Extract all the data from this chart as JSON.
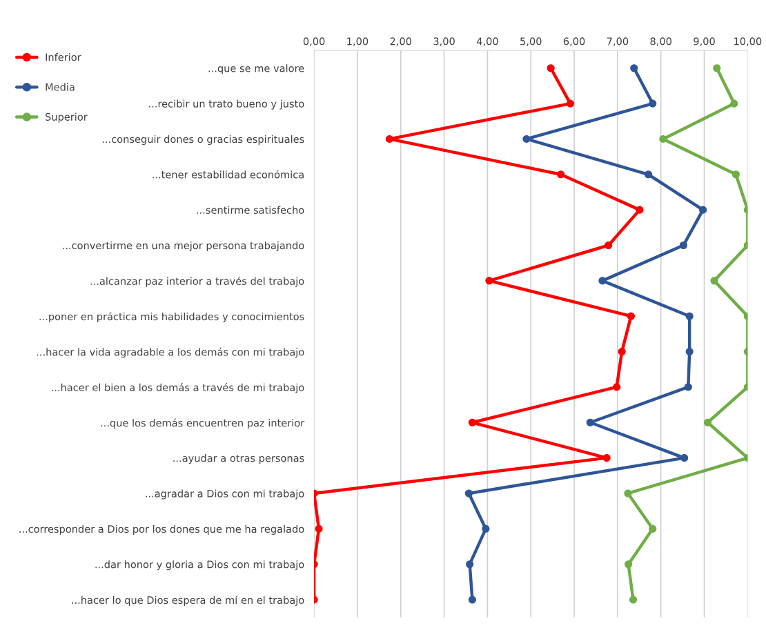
{
  "chart_data": {
    "type": "line",
    "categories": [
      "...que se me valore",
      "...recibir un trato bueno y justo",
      "...conseguir dones o gracias espirituales",
      "...tener estabilidad económica",
      "...sentirme satisfecho",
      "...convertirme en una mejor persona trabajando",
      "...alcanzar paz interior a través del trabajo",
      "...poner en práctica mis habilidades y conocimientos",
      "...hacer la vida agradable a los demás con mi trabajo",
      "...hacer el bien a los demás a través de mi trabajo",
      "...que los demás encuentren paz interior",
      "...ayudar a otras personas",
      "...agradar a Dios con mi trabajo",
      "...corresponder a Dios por los dones que me ha regalado",
      "...dar honor y gloria a Dios con mi trabajo",
      "...hacer lo que Dios espera de mí en el trabajo"
    ],
    "orientation": "horizontal",
    "series": [
      {
        "name": "Inferior",
        "color": "#ff0000",
        "values": [
          5.46,
          5.91,
          1.74,
          5.69,
          7.51,
          6.79,
          4.04,
          7.31,
          7.1,
          6.98,
          3.65,
          6.75,
          0.0,
          0.11,
          0.0,
          0.0
        ]
      },
      {
        "name": "Media",
        "color": "#2f5597",
        "values": [
          7.38,
          7.81,
          4.9,
          7.71,
          8.97,
          8.52,
          6.65,
          8.66,
          8.66,
          8.63,
          6.37,
          8.54,
          3.57,
          3.96,
          3.59,
          3.65
        ]
      },
      {
        "name": "Superior",
        "color": "#70ad47",
        "values": [
          9.29,
          9.69,
          8.05,
          9.73,
          10.0,
          10.0,
          9.23,
          10.0,
          10.0,
          10.0,
          9.08,
          10.0,
          7.24,
          7.81,
          7.25,
          7.36
        ]
      }
    ],
    "xlim": [
      0,
      10
    ],
    "xticks": [
      {
        "value": 0,
        "label": "0,00"
      },
      {
        "value": 1,
        "label": "1,00"
      },
      {
        "value": 2,
        "label": "2,00"
      },
      {
        "value": 3,
        "label": "3,00"
      },
      {
        "value": 4,
        "label": "4,00"
      },
      {
        "value": 5,
        "label": "5,00"
      },
      {
        "value": 6,
        "label": "6,00"
      },
      {
        "value": 7,
        "label": "7,00"
      },
      {
        "value": 8,
        "label": "8,00"
      },
      {
        "value": 9,
        "label": "9,00"
      },
      {
        "value": 10,
        "label": "10,00"
      }
    ],
    "grid": "x",
    "legend": "top left",
    "marker": "circle",
    "line_style": "solid"
  }
}
